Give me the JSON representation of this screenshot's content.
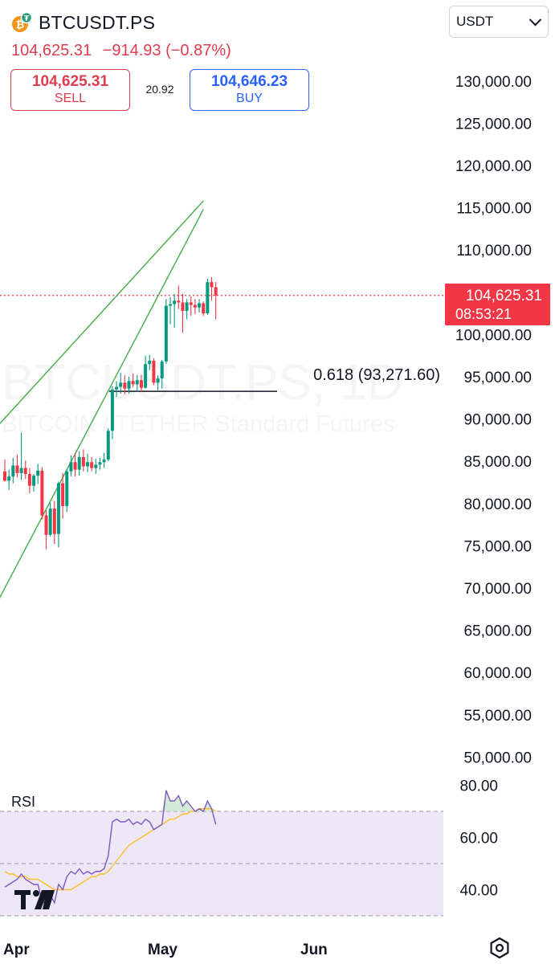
{
  "header": {
    "symbol": "BTCUSDT.PS",
    "last_price": "104,625.31",
    "change": "−914.93 (−0.87%)",
    "sell_price": "104,625.31",
    "sell_label": "SELL",
    "spread": "20.92",
    "buy_price": "104,646.23",
    "buy_label": "BUY",
    "currency": "USDT",
    "coin_icon": "bitcoin-icon"
  },
  "price_tag": {
    "price": "104,625.31",
    "countdown": "08:53:21"
  },
  "watermark": {
    "line1": "BTCUSDT.PS, 1D",
    "line2": "BITCOIN / TETHER Standard Futures"
  },
  "rsi_label": "RSI",
  "colors": {
    "up": "#089981",
    "down": "#f23645",
    "wedge": "#4caf50",
    "rsi": "#7e57c2",
    "rsi_ma": "#fbc02d",
    "rsi_band": "#ede7f6",
    "price_tag_bg": "#f23645",
    "sell": "#e03c50",
    "buy": "#2962ff"
  },
  "chart_data": [
    {
      "type": "candlestick",
      "y_axis_ticks": [
        "130,000.00",
        "125,000.00",
        "120,000.00",
        "115,000.00",
        "110,000.00",
        "100,000.00",
        "95,000.00",
        "90,000.00",
        "85,000.00",
        "80,000.00",
        "75,000.00",
        "70,000.00",
        "65,000.00",
        "60,000.00",
        "55,000.00",
        "50,000.00"
      ],
      "y_tick_values": [
        130000,
        125000,
        120000,
        115000,
        110000,
        100000,
        95000,
        90000,
        85000,
        80000,
        75000,
        70000,
        65000,
        60000,
        55000,
        50000
      ],
      "x_axis_ticks": [
        "Apr",
        "May",
        "Jun"
      ],
      "ylim": [
        47000,
        134000
      ],
      "last_price": 104625.31,
      "candles": [
        {
          "o": 83800,
          "h": 85200,
          "l": 82600,
          "c": 82700
        },
        {
          "o": 82700,
          "h": 84000,
          "l": 81600,
          "c": 83200
        },
        {
          "o": 83200,
          "h": 85400,
          "l": 82400,
          "c": 84500
        },
        {
          "o": 84500,
          "h": 85800,
          "l": 83100,
          "c": 83600
        },
        {
          "o": 83600,
          "h": 88400,
          "l": 82800,
          "c": 84200
        },
        {
          "o": 84200,
          "h": 85100,
          "l": 82900,
          "c": 83500
        },
        {
          "o": 83500,
          "h": 84200,
          "l": 81200,
          "c": 82100
        },
        {
          "o": 82100,
          "h": 83500,
          "l": 81400,
          "c": 83300
        },
        {
          "o": 83300,
          "h": 84700,
          "l": 82300,
          "c": 83900
        },
        {
          "o": 83900,
          "h": 84300,
          "l": 78100,
          "c": 78600
        },
        {
          "o": 78600,
          "h": 79200,
          "l": 74600,
          "c": 76300
        },
        {
          "o": 76300,
          "h": 80100,
          "l": 76100,
          "c": 79400
        },
        {
          "o": 79400,
          "h": 80300,
          "l": 75200,
          "c": 76400
        },
        {
          "o": 76400,
          "h": 82600,
          "l": 74800,
          "c": 82400
        },
        {
          "o": 82400,
          "h": 83600,
          "l": 78200,
          "c": 79700
        },
        {
          "o": 79700,
          "h": 84100,
          "l": 79000,
          "c": 83800
        },
        {
          "o": 83800,
          "h": 85700,
          "l": 83200,
          "c": 84900
        },
        {
          "o": 84900,
          "h": 86000,
          "l": 83200,
          "c": 84000
        },
        {
          "o": 84000,
          "h": 86200,
          "l": 83300,
          "c": 85500
        },
        {
          "o": 85500,
          "h": 86400,
          "l": 83800,
          "c": 84400
        },
        {
          "o": 84400,
          "h": 85900,
          "l": 83700,
          "c": 84900
        },
        {
          "o": 84900,
          "h": 85500,
          "l": 83800,
          "c": 84200
        },
        {
          "o": 84200,
          "h": 85300,
          "l": 83500,
          "c": 84600
        },
        {
          "o": 84600,
          "h": 85400,
          "l": 84000,
          "c": 84900
        },
        {
          "o": 84900,
          "h": 86000,
          "l": 84200,
          "c": 85200
        },
        {
          "o": 85200,
          "h": 88900,
          "l": 85000,
          "c": 88600
        },
        {
          "o": 88600,
          "h": 93900,
          "l": 87600,
          "c": 93500
        },
        {
          "o": 93500,
          "h": 94500,
          "l": 92600,
          "c": 93800
        },
        {
          "o": 93800,
          "h": 95500,
          "l": 93000,
          "c": 94300
        },
        {
          "o": 94300,
          "h": 95200,
          "l": 92900,
          "c": 93600
        },
        {
          "o": 93600,
          "h": 95000,
          "l": 93000,
          "c": 94500
        },
        {
          "o": 94500,
          "h": 95400,
          "l": 93800,
          "c": 94100
        },
        {
          "o": 94100,
          "h": 95200,
          "l": 93200,
          "c": 94600
        },
        {
          "o": 94600,
          "h": 95200,
          "l": 93200,
          "c": 93700
        },
        {
          "o": 93700,
          "h": 97500,
          "l": 93600,
          "c": 96500
        },
        {
          "o": 96500,
          "h": 97600,
          "l": 95800,
          "c": 96900
        },
        {
          "o": 96900,
          "h": 97200,
          "l": 94000,
          "c": 94300
        },
        {
          "o": 94300,
          "h": 95200,
          "l": 93400,
          "c": 94800
        },
        {
          "o": 94800,
          "h": 97000,
          "l": 93600,
          "c": 96800
        },
        {
          "o": 96800,
          "h": 104200,
          "l": 96500,
          "c": 103400
        },
        {
          "o": 103400,
          "h": 104400,
          "l": 101200,
          "c": 103600
        },
        {
          "o": 103600,
          "h": 104800,
          "l": 100800,
          "c": 104000
        },
        {
          "o": 104000,
          "h": 105800,
          "l": 103000,
          "c": 103800
        },
        {
          "o": 103800,
          "h": 104800,
          "l": 100200,
          "c": 102800
        },
        {
          "o": 102800,
          "h": 104200,
          "l": 101800,
          "c": 103800
        },
        {
          "o": 103800,
          "h": 104500,
          "l": 102200,
          "c": 103500
        },
        {
          "o": 103500,
          "h": 104200,
          "l": 102400,
          "c": 103200
        },
        {
          "o": 103200,
          "h": 104200,
          "l": 102600,
          "c": 103700
        },
        {
          "o": 103700,
          "h": 103900,
          "l": 102200,
          "c": 102500
        },
        {
          "o": 102500,
          "h": 106600,
          "l": 102300,
          "c": 106200
        },
        {
          "o": 106200,
          "h": 106800,
          "l": 104000,
          "c": 105600
        },
        {
          "o": 105600,
          "h": 106200,
          "l": 101800,
          "c": 104625
        }
      ],
      "wedge_upper": [
        [
          -3,
          88500
        ],
        [
          48,
          115800
        ]
      ],
      "wedge_lower": [
        [
          -3,
          67200
        ],
        [
          48,
          114800
        ]
      ],
      "fib_level": {
        "label": "0.618 (93,271.60)",
        "price": 93271.6,
        "from": 26,
        "to": 60
      }
    },
    {
      "type": "line",
      "name": "RSI",
      "y_axis_ticks": [
        "80.00",
        "60.00",
        "40.00"
      ],
      "y_tick_values": [
        80,
        60,
        40
      ],
      "ylim": [
        30,
        85
      ],
      "bands": [
        70,
        50,
        30
      ],
      "rsi": [
        41,
        42,
        43,
        44,
        46,
        44,
        43,
        42,
        42,
        36,
        34,
        38,
        35,
        42,
        40,
        45,
        47,
        46,
        48,
        46,
        47,
        46,
        47,
        47,
        48,
        53,
        66,
        67,
        66,
        66,
        67,
        65,
        66,
        65,
        67,
        66,
        63,
        64,
        65,
        78,
        74,
        74,
        76,
        72,
        74,
        72,
        70,
        71,
        70,
        74,
        71,
        65
      ],
      "rsi_ma": [
        47,
        46,
        46,
        45,
        45,
        45,
        44,
        44,
        44,
        43,
        42,
        41,
        40,
        40,
        40,
        40,
        40,
        41,
        42,
        43,
        44,
        45,
        45,
        46,
        46,
        47,
        49,
        51,
        53,
        55,
        57,
        58,
        59,
        60,
        61,
        62,
        63,
        64,
        65,
        66,
        67,
        67,
        68,
        69,
        69,
        70,
        70,
        71,
        71,
        71,
        71,
        70
      ]
    }
  ]
}
